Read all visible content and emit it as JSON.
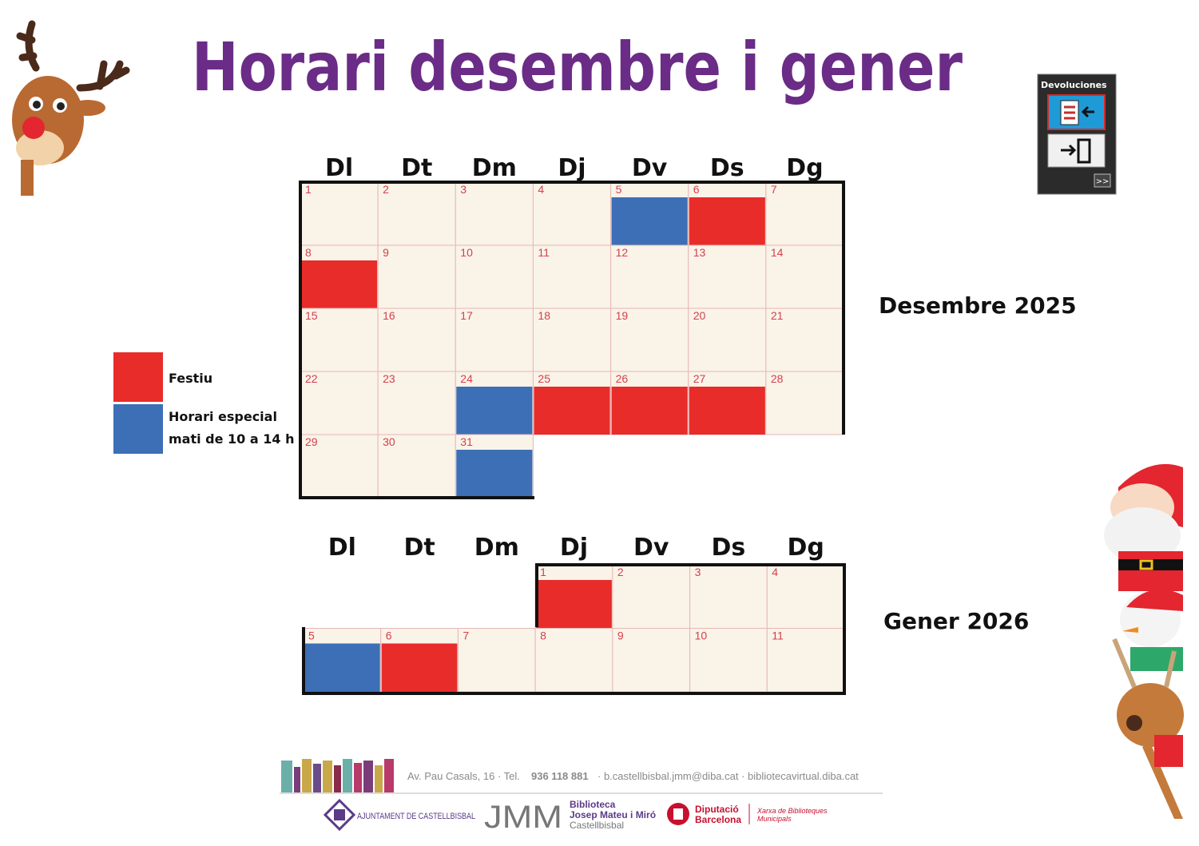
{
  "title": "Horari desembre i gener",
  "widget": {
    "title": "Devoluciones",
    "more": ">>"
  },
  "legend": [
    {
      "lines": [
        "Festiu"
      ],
      "color": "#e82c2a"
    },
    {
      "lines": [
        "Horari especial",
        "mati de 10 a 14 h"
      ],
      "color": "#3c6fb6"
    }
  ],
  "calendars": [
    {
      "label": "Desembre 2025",
      "weekdays": [
        "Dl",
        "Dt",
        "Dm",
        "Dj",
        "Dv",
        "Ds",
        "Dg"
      ],
      "weeks": [
        [
          {
            "day": 1
          },
          {
            "day": 2
          },
          {
            "day": 3
          },
          {
            "day": 4
          },
          {
            "day": 5,
            "color": "#3c6fb6"
          },
          {
            "day": 6,
            "color": "#e82c2a"
          },
          {
            "day": 7
          }
        ],
        [
          {
            "day": 8,
            "color": "#e82c2a"
          },
          {
            "day": 9
          },
          {
            "day": 10
          },
          {
            "day": 11
          },
          {
            "day": 12
          },
          {
            "day": 13
          },
          {
            "day": 14
          }
        ],
        [
          {
            "day": 15
          },
          {
            "day": 16
          },
          {
            "day": 17
          },
          {
            "day": 18
          },
          {
            "day": 19
          },
          {
            "day": 20
          },
          {
            "day": 21
          }
        ],
        [
          {
            "day": 22
          },
          {
            "day": 23
          },
          {
            "day": 24,
            "color": "#3c6fb6"
          },
          {
            "day": 25,
            "color": "#e82c2a"
          },
          {
            "day": 26,
            "color": "#e82c2a"
          },
          {
            "day": 27,
            "color": "#e82c2a"
          },
          {
            "day": 28
          }
        ],
        [
          {
            "day": 29
          },
          {
            "day": 30
          },
          {
            "day": 31,
            "color": "#3c6fb6"
          },
          null,
          null,
          null,
          null
        ]
      ]
    },
    {
      "label": "Gener 2026",
      "weekdays": [
        "Dl",
        "Dt",
        "Dm",
        "Dj",
        "Dv",
        "Ds",
        "Dg"
      ],
      "weeks": [
        [
          null,
          null,
          null,
          {
            "day": 1,
            "color": "#e82c2a"
          },
          {
            "day": 2
          },
          {
            "day": 3
          },
          {
            "day": 4
          }
        ],
        [
          {
            "day": 5,
            "color": "#3c6fb6"
          },
          {
            "day": 6,
            "color": "#e82c2a"
          },
          {
            "day": 7
          },
          {
            "day": 8
          },
          {
            "day": 9
          },
          {
            "day": 10
          },
          {
            "day": 11
          }
        ]
      ]
    }
  ],
  "footer": {
    "address": "Av. Pau Casals, 16 · Tel.",
    "phone": "936 118 881",
    "contact": "· b.castellbisbal.jmm@diba.cat · bibliotecavirtual.diba.cat",
    "ajuntament": "AJUNTAMENT DE CASTELLBISBAL",
    "jmm": "JMM",
    "library": [
      "Biblioteca",
      "Josep Mateu i Miró",
      "Castellbisbal"
    ],
    "diputacio": [
      "Diputació",
      "Barcelona"
    ],
    "xarxa": [
      "Xarxa de Biblioteques",
      "Municipals"
    ]
  }
}
